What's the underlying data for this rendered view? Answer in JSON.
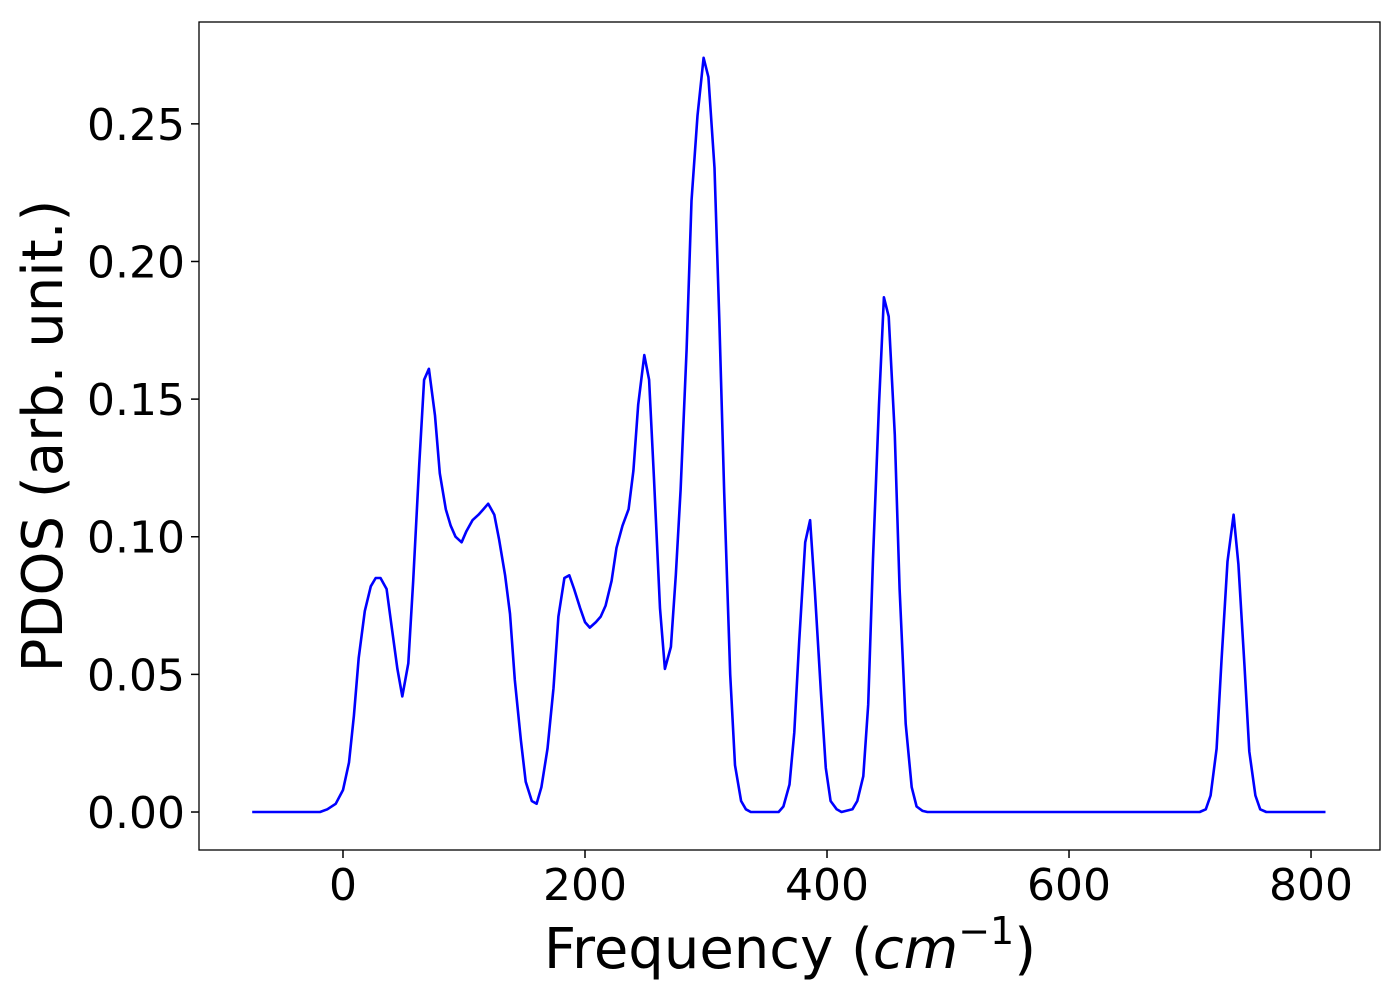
{
  "chart_data": {
    "type": "line",
    "xlabel": [
      "Frequency (",
      "cm",
      "−1",
      ")"
    ],
    "ylabel": "PDOS (arb. unit.)",
    "xlim": [
      -119,
      857
    ],
    "ylim": [
      -0.0138,
      0.287
    ],
    "xticks": [
      0,
      200,
      400,
      600,
      800
    ],
    "yticks": [
      {
        "value": 0,
        "label": "0.00"
      },
      0.05,
      {
        "value": 0.1,
        "label": "0.10"
      },
      0.15,
      {
        "value": 0.2,
        "label": "0.20"
      },
      0.25
    ],
    "grid": false,
    "series": [
      {
        "color": "#0000ff",
        "x": [
          -75,
          -19,
          -13,
          -6,
          0,
          5,
          9,
          13,
          18,
          23,
          27,
          31,
          36,
          40,
          45,
          49,
          54,
          58,
          63,
          67,
          71,
          76,
          80,
          85,
          89,
          93,
          98,
          102,
          107,
          112,
          116,
          120,
          125,
          129,
          134,
          138,
          142,
          147,
          151,
          156,
          160,
          164,
          169,
          174,
          178,
          183,
          187,
          191,
          196,
          200,
          204,
          209,
          213,
          217,
          222,
          226,
          231,
          236,
          240,
          244,
          249,
          253,
          257,
          262,
          266,
          271,
          275,
          279,
          284,
          288,
          293,
          298,
          302,
          307,
          311,
          315,
          320,
          324,
          329,
          333,
          337,
          360,
          364,
          369,
          373,
          377,
          382,
          386,
          390,
          395,
          399,
          403,
          408,
          412,
          421,
          425,
          430,
          434,
          438,
          443,
          447,
          451,
          456,
          460,
          465,
          470,
          474,
          479,
          483,
          708,
          713,
          717,
          722,
          726,
          731,
          736,
          740,
          745,
          749,
          754,
          758,
          763,
          812
        ],
        "values": [
          0,
          0,
          0.001,
          0.003,
          0.008,
          0.018,
          0.035,
          0.056,
          0.073,
          0.082,
          0.085,
          0.085,
          0.081,
          0.068,
          0.052,
          0.042,
          0.054,
          0.084,
          0.126,
          0.157,
          0.161,
          0.144,
          0.123,
          0.11,
          0.104,
          0.1,
          0.098,
          0.102,
          0.106,
          0.108,
          0.11,
          0.112,
          0.108,
          0.099,
          0.086,
          0.072,
          0.048,
          0.026,
          0.011,
          0.004,
          0.003,
          0.009,
          0.023,
          0.045,
          0.071,
          0.085,
          0.086,
          0.081,
          0.074,
          0.069,
          0.067,
          0.069,
          0.071,
          0.075,
          0.084,
          0.096,
          0.104,
          0.11,
          0.124,
          0.148,
          0.166,
          0.157,
          0.121,
          0.074,
          0.052,
          0.06,
          0.086,
          0.117,
          0.168,
          0.222,
          0.253,
          0.274,
          0.267,
          0.234,
          0.179,
          0.116,
          0.05,
          0.017,
          0.004,
          0.001,
          0,
          0,
          0.002,
          0.01,
          0.029,
          0.062,
          0.098,
          0.106,
          0.08,
          0.043,
          0.016,
          0.004,
          0.001,
          0,
          0.001,
          0.004,
          0.013,
          0.039,
          0.092,
          0.148,
          0.187,
          0.18,
          0.137,
          0.081,
          0.032,
          0.009,
          0.002,
          0.0004,
          0,
          0,
          0.001,
          0.006,
          0.023,
          0.055,
          0.091,
          0.108,
          0.09,
          0.053,
          0.022,
          0.006,
          0.001,
          0,
          0
        ]
      }
    ]
  }
}
